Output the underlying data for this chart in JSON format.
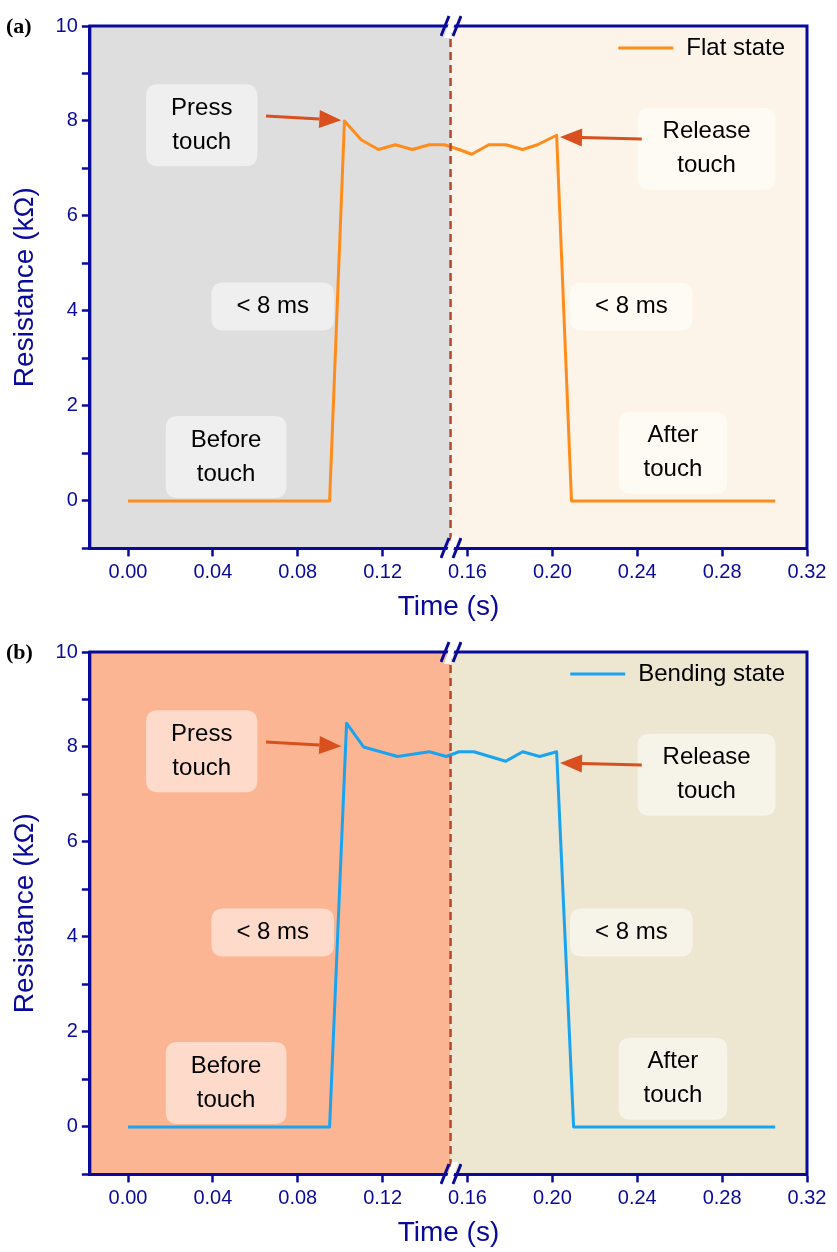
{
  "chart_data": [
    {
      "type": "line",
      "title": "(a)",
      "xlabel": "Time (s)",
      "ylabel": "Resistance (kΩ)",
      "xlim": [
        -0.018,
        0.32
      ],
      "ylim": [
        -1,
        10
      ],
      "xticks": [
        {
          "value": 0,
          "label": "0.00"
        },
        {
          "value": 0.04,
          "label": "0.04"
        },
        {
          "value": 0.08,
          "label": "0.08"
        },
        {
          "value": 0.12,
          "label": "0.12"
        },
        {
          "value": 0.16,
          "label": "0.16"
        },
        {
          "value": 0.2,
          "label": "0.20"
        },
        {
          "value": 0.24,
          "label": "0.24"
        },
        {
          "value": 0.28,
          "label": "0.28"
        },
        {
          "value": 0.32,
          "label": "0.32"
        }
      ],
      "yticks": [
        {
          "value": -1,
          "label": null
        },
        0,
        {
          "value": 1,
          "label": null
        },
        2,
        {
          "value": 3,
          "label": null
        },
        4,
        {
          "value": 5,
          "label": null
        },
        6,
        {
          "value": 7,
          "label": null
        },
        8,
        {
          "value": 9,
          "label": null
        },
        10
      ],
      "x": [
        0,
        0.02,
        0.04,
        0.06,
        0.08,
        0.095,
        0.102,
        0.11,
        0.118,
        0.126,
        0.134,
        0.142,
        0.149,
        0.156,
        0.162,
        0.17,
        0.178,
        0.186,
        0.193,
        0.202,
        0.209,
        0.23,
        0.25,
        0.27,
        0.29,
        0.305
      ],
      "series": [
        {
          "name": "Flat state",
          "color": "#ff8c1a",
          "values": [
            0,
            0,
            0,
            0,
            0,
            0,
            8.0,
            7.6,
            7.4,
            7.5,
            7.4,
            7.5,
            7.5,
            7.4,
            7.3,
            7.5,
            7.5,
            7.4,
            7.5,
            7.7,
            0,
            0,
            0,
            0,
            0,
            0
          ]
        }
      ],
      "bands": [
        {
          "axis": "x",
          "from": -0.018,
          "to": 0.152,
          "color": "#dedede"
        },
        {
          "axis": "x",
          "from": 0.152,
          "to": 0.32,
          "color": "#fdf4e9"
        }
      ],
      "ref_lines": [
        {
          "axis": "x",
          "value": 0.152,
          "color": "#b5472e",
          "line_style": "dashed"
        }
      ],
      "annotations": [
        "Press touch",
        "Release touch",
        "< 8 ms",
        "< 8 ms",
        "Before touch",
        "After touch"
      ],
      "legend": "top right",
      "grid": false
    },
    {
      "type": "line",
      "title": "(b)",
      "xlabel": "Time (s)",
      "ylabel": "Resistance (kΩ)",
      "xlim": [
        -0.018,
        0.32
      ],
      "ylim": [
        -1,
        10
      ],
      "xticks": [
        {
          "value": 0,
          "label": "0.00"
        },
        {
          "value": 0.04,
          "label": "0.04"
        },
        {
          "value": 0.08,
          "label": "0.08"
        },
        {
          "value": 0.12,
          "label": "0.12"
        },
        {
          "value": 0.16,
          "label": "0.16"
        },
        {
          "value": 0.2,
          "label": "0.20"
        },
        {
          "value": 0.24,
          "label": "0.24"
        },
        {
          "value": 0.28,
          "label": "0.28"
        },
        {
          "value": 0.32,
          "label": "0.32"
        }
      ],
      "yticks": [
        {
          "value": -1,
          "label": null
        },
        0,
        {
          "value": 1,
          "label": null
        },
        2,
        {
          "value": 3,
          "label": null
        },
        4,
        {
          "value": 5,
          "label": null
        },
        6,
        {
          "value": 7,
          "label": null
        },
        8,
        {
          "value": 9,
          "label": null
        },
        10
      ],
      "x": [
        0,
        0.02,
        0.04,
        0.06,
        0.08,
        0.095,
        0.103,
        0.111,
        0.127,
        0.142,
        0.15,
        0.156,
        0.163,
        0.178,
        0.186,
        0.194,
        0.202,
        0.21,
        0.23,
        0.25,
        0.27,
        0.29,
        0.305
      ],
      "series": [
        {
          "name": "Bending state",
          "color": "#1aa3ee",
          "values": [
            0,
            0,
            0,
            0,
            0,
            0,
            8.5,
            8.0,
            7.8,
            7.9,
            7.8,
            7.9,
            7.9,
            7.7,
            7.9,
            7.8,
            7.9,
            0,
            0,
            0,
            0,
            0,
            0
          ]
        }
      ],
      "bands": [
        {
          "axis": "x",
          "from": -0.018,
          "to": 0.152,
          "color": "#fbb592"
        },
        {
          "axis": "x",
          "from": 0.152,
          "to": 0.32,
          "color": "#ede6d0"
        }
      ],
      "ref_lines": [
        {
          "axis": "x",
          "value": 0.152,
          "color": "#b5472e",
          "line_style": "dashed"
        }
      ],
      "annotations": [
        "Press touch",
        "Release touch",
        "< 8 ms",
        "< 8 ms",
        "Before touch",
        "After touch"
      ],
      "legend": "top right",
      "grid": false
    }
  ]
}
